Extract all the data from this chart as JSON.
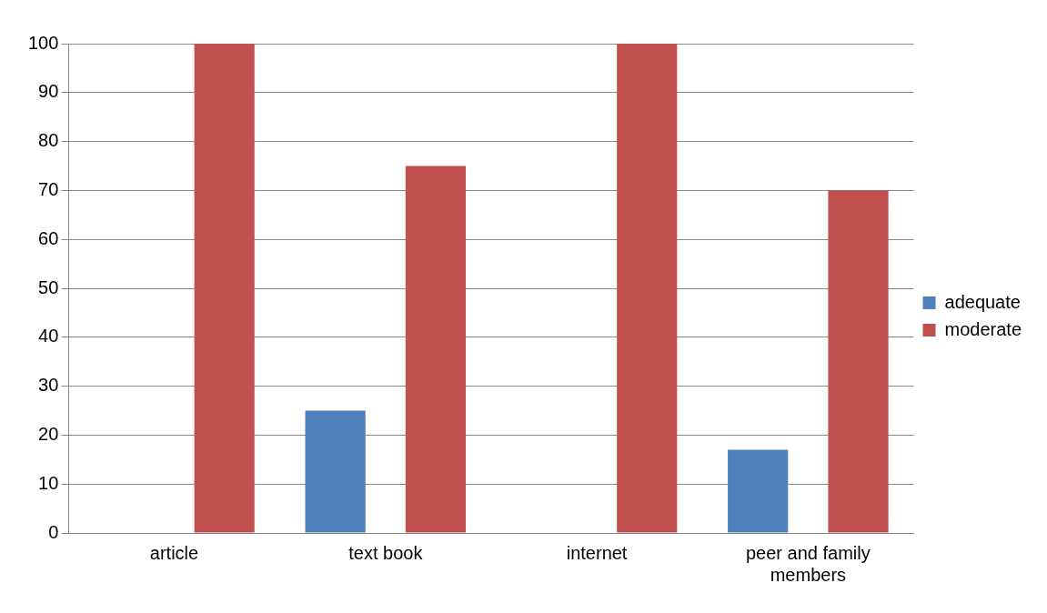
{
  "chart_data": {
    "type": "bar",
    "categories": [
      "article",
      "text book",
      "internet",
      "peer and family members"
    ],
    "series": [
      {
        "name": "adequate",
        "color": "#4f81bd",
        "values": [
          0,
          25,
          0,
          17
        ]
      },
      {
        "name": "moderate",
        "color": "#c0504d",
        "values": [
          100,
          75,
          100,
          70
        ]
      }
    ],
    "ylim": [
      0,
      100
    ],
    "yticks": [
      0,
      10,
      20,
      30,
      40,
      50,
      60,
      70,
      80,
      90,
      100
    ],
    "grid": "y",
    "legend": "right"
  }
}
